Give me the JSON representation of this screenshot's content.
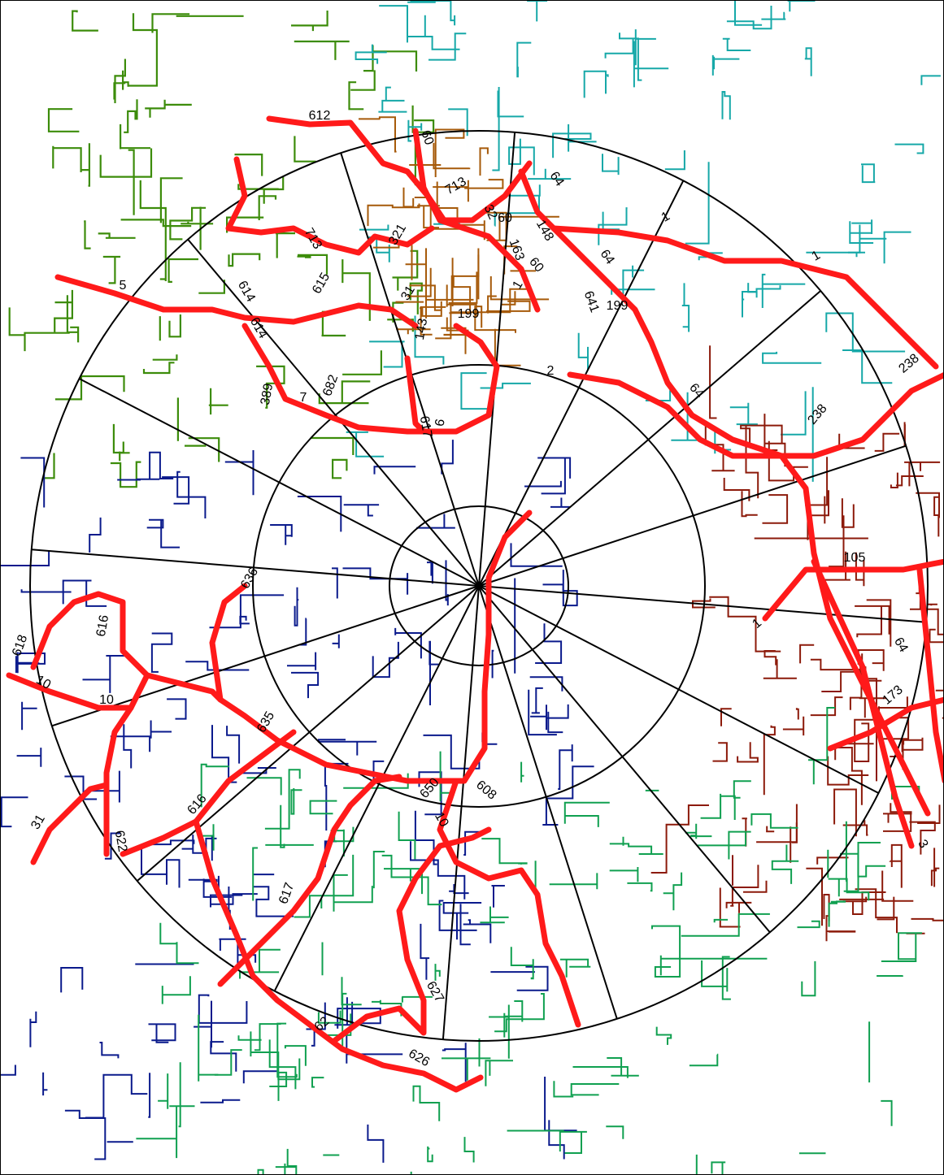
{
  "map": {
    "colors": {
      "road_highlight": "#ff1a1a",
      "ring_lines": "#000000",
      "zone_north": "#3c8c0a",
      "zone_northeast": "#16a8a8",
      "zone_center_north": "#a65a0a",
      "zone_east": "#8c1a0a",
      "zone_west": "#0a1a8c",
      "zone_south": "#10a050"
    },
    "road_labels": [
      {
        "id": "r612",
        "text": "612"
      },
      {
        "id": "r60a",
        "text": "60"
      },
      {
        "id": "r713a",
        "text": "713"
      },
      {
        "id": "r64a",
        "text": "64"
      },
      {
        "id": "r32a",
        "text": "32"
      },
      {
        "id": "r60b",
        "text": "60"
      },
      {
        "id": "r148",
        "text": "148"
      },
      {
        "id": "r163",
        "text": "163"
      },
      {
        "id": "r321",
        "text": "321"
      },
      {
        "id": "r1a",
        "text": "1"
      },
      {
        "id": "r1b",
        "text": "1"
      },
      {
        "id": "r64b",
        "text": "64"
      },
      {
        "id": "r713b",
        "text": "713"
      },
      {
        "id": "r5",
        "text": "5"
      },
      {
        "id": "r615",
        "text": "615"
      },
      {
        "id": "r614a",
        "text": "614"
      },
      {
        "id": "r614b",
        "text": "614"
      },
      {
        "id": "r31",
        "text": "31"
      },
      {
        "id": "r60c",
        "text": "60"
      },
      {
        "id": "r1c",
        "text": "1"
      },
      {
        "id": "r641",
        "text": "641"
      },
      {
        "id": "r199a",
        "text": "199"
      },
      {
        "id": "r199b",
        "text": "199"
      },
      {
        "id": "r143",
        "text": "143"
      },
      {
        "id": "r389",
        "text": "389"
      },
      {
        "id": "r7",
        "text": "7"
      },
      {
        "id": "r682",
        "text": "682"
      },
      {
        "id": "r617a",
        "text": "617"
      },
      {
        "id": "r6",
        "text": "6"
      },
      {
        "id": "r2",
        "text": "2"
      },
      {
        "id": "r64c",
        "text": "64"
      },
      {
        "id": "r238a",
        "text": "238"
      },
      {
        "id": "r238b",
        "text": "238"
      },
      {
        "id": "r105",
        "text": "105"
      },
      {
        "id": "r1d",
        "text": "1"
      },
      {
        "id": "r64d",
        "text": "64"
      },
      {
        "id": "r173",
        "text": "173"
      },
      {
        "id": "r636",
        "text": "636"
      },
      {
        "id": "r616a",
        "text": "616"
      },
      {
        "id": "r618",
        "text": "618"
      },
      {
        "id": "r10a",
        "text": "10"
      },
      {
        "id": "r10b",
        "text": "10"
      },
      {
        "id": "r635",
        "text": "635"
      },
      {
        "id": "r650",
        "text": "650"
      },
      {
        "id": "r608",
        "text": "608"
      },
      {
        "id": "r10c",
        "text": "10"
      },
      {
        "id": "r31b",
        "text": "31"
      },
      {
        "id": "r622",
        "text": "622"
      },
      {
        "id": "r616b",
        "text": "616"
      },
      {
        "id": "r617b",
        "text": "617"
      },
      {
        "id": "r627",
        "text": "627"
      },
      {
        "id": "r62",
        "text": "62"
      },
      {
        "id": "r626",
        "text": "626"
      },
      {
        "id": "r3",
        "text": "3"
      }
    ]
  }
}
